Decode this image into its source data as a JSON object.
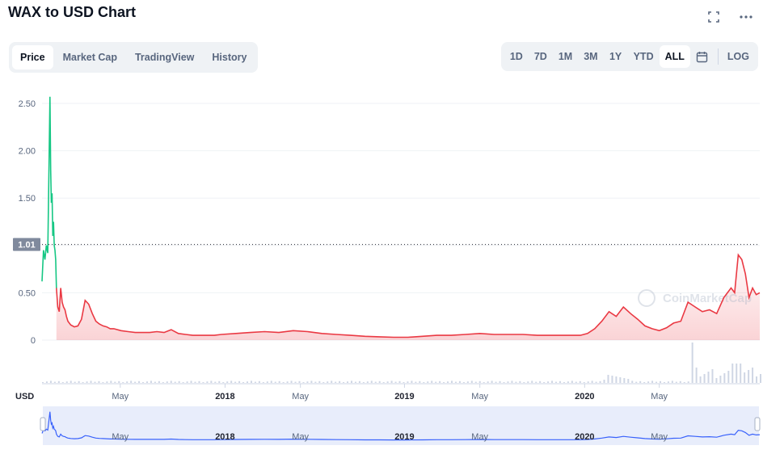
{
  "page": {
    "title": "WAX to USD Chart"
  },
  "header_icons": [
    "fullscreen-icon",
    "more-icon"
  ],
  "tabs": [
    {
      "label": "Price",
      "active": true
    },
    {
      "label": "Market Cap",
      "active": false
    },
    {
      "label": "TradingView",
      "active": false
    },
    {
      "label": "History",
      "active": false
    }
  ],
  "ranges": [
    {
      "label": "1D",
      "active": false
    },
    {
      "label": "7D",
      "active": false
    },
    {
      "label": "1M",
      "active": false
    },
    {
      "label": "3M",
      "active": false
    },
    {
      "label": "1Y",
      "active": false
    },
    {
      "label": "YTD",
      "active": false
    },
    {
      "label": "ALL",
      "active": true
    }
  ],
  "calendar_icon": "calendar-icon",
  "log_label": "LOG",
  "colors": {
    "up": "#16c784",
    "down": "#ea3943",
    "fill": "#ea3943",
    "volume": "#cfd6e4",
    "nav_line": "#3861fb",
    "nav_bg": "#e8edfb"
  },
  "chart_data": {
    "type": "line",
    "title": "",
    "ylabel": "USD",
    "ylim": [
      0,
      2.6
    ],
    "yticks": [
      "0",
      "0.50",
      "1.00",
      "1.50",
      "2.00",
      "2.50"
    ],
    "reference_value": 1.01,
    "reference_label": "1.01",
    "xticks": [
      {
        "label": "May",
        "bold": false,
        "t": 0.109
      },
      {
        "label": "2018",
        "bold": true,
        "t": 0.255
      },
      {
        "label": "May",
        "bold": false,
        "t": 0.36
      },
      {
        "label": "2019",
        "bold": true,
        "t": 0.505
      },
      {
        "label": "May",
        "bold": false,
        "t": 0.61
      },
      {
        "label": "2020",
        "bold": true,
        "t": 0.756
      },
      {
        "label": "May",
        "bold": false,
        "t": 0.86
      }
    ],
    "watermark": "CoinMarketCap",
    "series": [
      {
        "x": [
          0,
          0.002,
          0.004,
          0.006,
          0.008,
          0.01,
          0.011,
          0.012,
          0.013,
          0.014,
          0.015,
          0.016,
          0.017,
          0.018,
          0.019,
          0.02,
          0.022,
          0.024,
          0.026,
          0.028,
          0.03,
          0.032,
          0.034,
          0.036,
          0.038,
          0.04,
          0.045,
          0.05,
          0.055,
          0.06,
          0.065,
          0.07,
          0.075,
          0.08,
          0.085,
          0.09,
          0.095,
          0.1,
          0.11,
          0.12,
          0.13,
          0.14,
          0.15,
          0.16,
          0.17,
          0.18,
          0.19,
          0.2,
          0.21,
          0.22,
          0.23,
          0.24,
          0.25,
          0.27,
          0.29,
          0.31,
          0.33,
          0.35,
          0.37,
          0.39,
          0.41,
          0.43,
          0.45,
          0.47,
          0.49,
          0.51,
          0.53,
          0.55,
          0.57,
          0.59,
          0.61,
          0.63,
          0.65,
          0.67,
          0.69,
          0.71,
          0.73,
          0.75,
          0.76,
          0.77,
          0.78,
          0.79,
          0.8,
          0.81,
          0.82,
          0.83,
          0.84,
          0.85,
          0.86,
          0.87,
          0.88,
          0.89,
          0.9,
          0.91,
          0.92,
          0.93,
          0.94,
          0.95,
          0.96,
          0.965,
          0.97,
          0.975,
          0.98,
          0.985,
          0.99,
          0.995,
          1.0
        ],
        "y": [
          0.62,
          0.95,
          0.85,
          1.0,
          0.92,
          2.0,
          2.57,
          1.8,
          1.45,
          1.55,
          1.1,
          1.25,
          1.0,
          0.95,
          0.85,
          0.55,
          0.35,
          0.3,
          0.55,
          0.4,
          0.35,
          0.32,
          0.25,
          0.2,
          0.18,
          0.16,
          0.14,
          0.15,
          0.22,
          0.42,
          0.38,
          0.28,
          0.2,
          0.17,
          0.15,
          0.14,
          0.12,
          0.12,
          0.1,
          0.09,
          0.08,
          0.08,
          0.08,
          0.09,
          0.08,
          0.11,
          0.07,
          0.06,
          0.05,
          0.05,
          0.05,
          0.05,
          0.06,
          0.07,
          0.08,
          0.09,
          0.08,
          0.1,
          0.09,
          0.07,
          0.06,
          0.05,
          0.04,
          0.035,
          0.03,
          0.03,
          0.04,
          0.05,
          0.05,
          0.06,
          0.07,
          0.06,
          0.06,
          0.06,
          0.05,
          0.05,
          0.05,
          0.05,
          0.07,
          0.12,
          0.2,
          0.3,
          0.25,
          0.35,
          0.28,
          0.22,
          0.15,
          0.12,
          0.1,
          0.13,
          0.18,
          0.2,
          0.4,
          0.35,
          0.3,
          0.32,
          0.28,
          0.45,
          0.55,
          0.5,
          0.9,
          0.85,
          0.7,
          0.45,
          0.55,
          0.48,
          0.5
        ],
        "color_up_until_x": 0.02
      }
    ]
  }
}
